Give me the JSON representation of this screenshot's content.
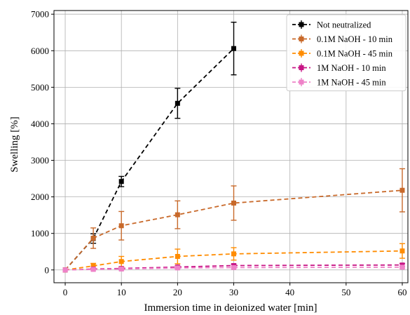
{
  "chart_data": {
    "type": "line",
    "xlabel": "Immersion time in deionized water [min]",
    "ylabel": "Swelling [%]",
    "xlim": [
      -2,
      61
    ],
    "ylim": [
      -350,
      7100
    ],
    "xticks": [
      0,
      10,
      20,
      30,
      40,
      50,
      60
    ],
    "yticks": [
      0,
      1000,
      2000,
      3000,
      4000,
      5000,
      6000,
      7000
    ],
    "grid": true,
    "legend_position": "top-right",
    "series": [
      {
        "name": "Not neutralized",
        "color": "#000000",
        "x": [
          0,
          5,
          10,
          20,
          30
        ],
        "values": [
          0,
          860,
          2420,
          4560,
          6060
        ],
        "errors": [
          0,
          130,
          140,
          410,
          720
        ]
      },
      {
        "name": "0.1M NaOH - 10 min",
        "color": "#c8692a",
        "x": [
          0,
          5,
          10,
          20,
          30,
          60
        ],
        "values": [
          0,
          870,
          1210,
          1510,
          1830,
          2180
        ],
        "errors": [
          0,
          280,
          390,
          380,
          470,
          590
        ]
      },
      {
        "name": "0.1M NaOH - 45 min",
        "color": "#ff8c00",
        "x": [
          0,
          5,
          10,
          20,
          30,
          60
        ],
        "values": [
          0,
          110,
          230,
          370,
          440,
          520
        ],
        "errors": [
          0,
          70,
          140,
          200,
          170,
          200
        ]
      },
      {
        "name": "1M NaOH - 10 min",
        "color": "#c71585",
        "x": [
          0,
          5,
          10,
          20,
          30,
          60
        ],
        "values": [
          0,
          25,
          40,
          80,
          120,
          135
        ],
        "errors": [
          0,
          15,
          20,
          30,
          40,
          40
        ]
      },
      {
        "name": "1M NaOH - 45 min",
        "color": "#ee82c8",
        "x": [
          0,
          5,
          10,
          20,
          30,
          60
        ],
        "values": [
          0,
          15,
          25,
          55,
          65,
          75
        ],
        "errors": [
          0,
          10,
          15,
          25,
          25,
          30
        ]
      }
    ]
  }
}
